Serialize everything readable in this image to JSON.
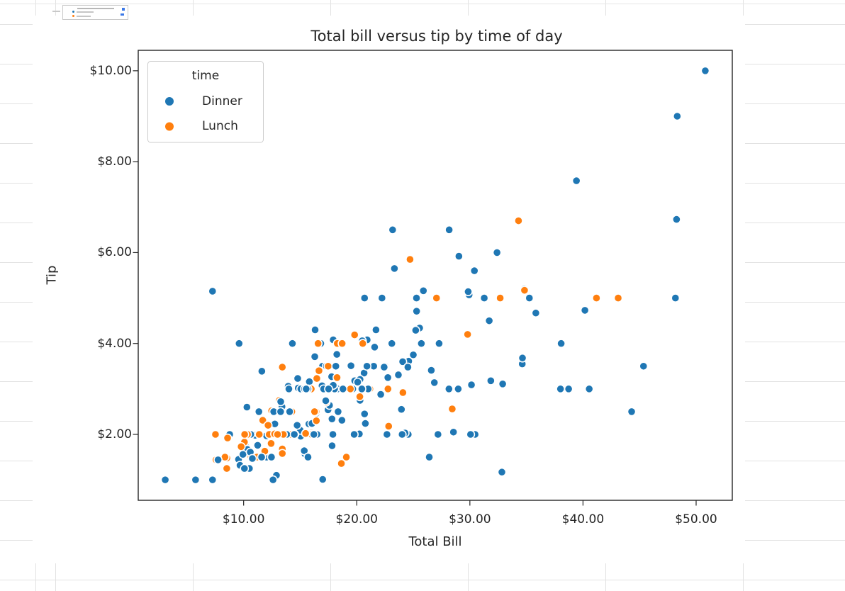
{
  "style": {
    "text_color": "#262626",
    "spine_color": "#262626",
    "marker_edge_color": "#ffffff",
    "figure_background": "#ffffff",
    "spreadsheet_gridline_color": "#e2e2e2",
    "legend_border_color": "#cccccc"
  },
  "thumbnail": {
    "dot_colors": [
      "#1f77b4",
      "#ff7f0e"
    ],
    "glyph_color": "#3b78e7"
  },
  "chart_data": {
    "type": "scatter",
    "title": "Total bill versus tip by time of day",
    "xlabel": "Total Bill",
    "ylabel": "Tip",
    "xlim": [
      0.683,
      53.197
    ],
    "ylim": [
      0.55,
      10.45
    ],
    "grid": false,
    "x_ticks": [
      {
        "value": 10,
        "label": "$10.00"
      },
      {
        "value": 20,
        "label": "$20.00"
      },
      {
        "value": 30,
        "label": "$30.00"
      },
      {
        "value": 40,
        "label": "$40.00"
      },
      {
        "value": 50,
        "label": "$50.00"
      }
    ],
    "y_ticks": [
      {
        "value": 2,
        "label": "$2.00"
      },
      {
        "value": 4,
        "label": "$4.00"
      },
      {
        "value": 6,
        "label": "$6.00"
      },
      {
        "value": 8,
        "label": "$8.00"
      },
      {
        "value": 10,
        "label": "$10.00"
      }
    ],
    "legend": {
      "title": "time",
      "position": "upper left",
      "entries": [
        {
          "label": "Dinner",
          "color": "#1f77b4"
        },
        {
          "label": "Lunch",
          "color": "#ff7f0e"
        }
      ]
    },
    "point_format": [
      "total_bill",
      "tip",
      "time_code"
    ],
    "time_codes": {
      "D": "Dinner",
      "L": "Lunch"
    },
    "points": [
      [
        16.99,
        1.01,
        "D"
      ],
      [
        10.34,
        1.66,
        "D"
      ],
      [
        21.01,
        3.5,
        "D"
      ],
      [
        23.68,
        3.31,
        "D"
      ],
      [
        24.59,
        3.61,
        "D"
      ],
      [
        25.29,
        4.71,
        "D"
      ],
      [
        8.77,
        2.0,
        "D"
      ],
      [
        26.88,
        3.12,
        "D"
      ],
      [
        15.04,
        1.96,
        "D"
      ],
      [
        14.78,
        3.23,
        "D"
      ],
      [
        10.27,
        1.71,
        "D"
      ],
      [
        35.26,
        5.0,
        "D"
      ],
      [
        15.42,
        1.57,
        "D"
      ],
      [
        18.43,
        3.0,
        "D"
      ],
      [
        14.83,
        3.02,
        "D"
      ],
      [
        21.58,
        3.92,
        "D"
      ],
      [
        10.33,
        1.67,
        "D"
      ],
      [
        16.29,
        3.71,
        "D"
      ],
      [
        16.97,
        3.5,
        "D"
      ],
      [
        20.65,
        3.35,
        "D"
      ],
      [
        17.92,
        4.08,
        "D"
      ],
      [
        20.29,
        2.75,
        "D"
      ],
      [
        15.77,
        2.23,
        "D"
      ],
      [
        39.42,
        7.58,
        "D"
      ],
      [
        19.82,
        3.18,
        "D"
      ],
      [
        17.81,
        2.34,
        "D"
      ],
      [
        13.37,
        2.0,
        "D"
      ],
      [
        12.69,
        2.0,
        "D"
      ],
      [
        21.7,
        4.3,
        "D"
      ],
      [
        19.65,
        3.0,
        "D"
      ],
      [
        9.55,
        1.45,
        "D"
      ],
      [
        18.35,
        2.5,
        "D"
      ],
      [
        15.06,
        3.0,
        "D"
      ],
      [
        20.69,
        2.45,
        "D"
      ],
      [
        17.78,
        3.27,
        "D"
      ],
      [
        24.06,
        3.6,
        "D"
      ],
      [
        16.31,
        2.0,
        "D"
      ],
      [
        16.93,
        3.07,
        "D"
      ],
      [
        18.69,
        2.31,
        "D"
      ],
      [
        31.27,
        5.0,
        "D"
      ],
      [
        16.04,
        2.24,
        "D"
      ],
      [
        17.46,
        2.54,
        "D"
      ],
      [
        13.94,
        3.06,
        "D"
      ],
      [
        9.68,
        1.32,
        "D"
      ],
      [
        30.4,
        5.6,
        "D"
      ],
      [
        18.29,
        3.0,
        "D"
      ],
      [
        22.23,
        5.0,
        "D"
      ],
      [
        32.4,
        6.0,
        "D"
      ],
      [
        28.55,
        2.05,
        "D"
      ],
      [
        18.04,
        3.0,
        "D"
      ],
      [
        12.54,
        2.5,
        "D"
      ],
      [
        10.29,
        2.6,
        "D"
      ],
      [
        34.81,
        5.2,
        "D"
      ],
      [
        9.94,
        1.56,
        "D"
      ],
      [
        25.56,
        4.34,
        "D"
      ],
      [
        19.49,
        3.51,
        "D"
      ],
      [
        38.01,
        3.0,
        "D"
      ],
      [
        26.41,
        1.5,
        "D"
      ],
      [
        11.24,
        1.76,
        "D"
      ],
      [
        48.27,
        6.73,
        "D"
      ],
      [
        20.29,
        3.21,
        "D"
      ],
      [
        13.81,
        2.0,
        "D"
      ],
      [
        11.02,
        1.98,
        "D"
      ],
      [
        18.29,
        3.76,
        "D"
      ],
      [
        17.59,
        2.64,
        "D"
      ],
      [
        20.08,
        3.15,
        "D"
      ],
      [
        16.45,
        2.47,
        "D"
      ],
      [
        3.07,
        1.0,
        "D"
      ],
      [
        20.23,
        2.01,
        "D"
      ],
      [
        15.01,
        2.09,
        "D"
      ],
      [
        12.02,
        1.97,
        "D"
      ],
      [
        17.07,
        3.0,
        "D"
      ],
      [
        26.86,
        3.14,
        "D"
      ],
      [
        25.28,
        5.0,
        "D"
      ],
      [
        14.73,
        2.2,
        "D"
      ],
      [
        10.51,
        1.25,
        "D"
      ],
      [
        17.92,
        3.08,
        "D"
      ],
      [
        27.2,
        4.0,
        "L"
      ],
      [
        22.76,
        3.0,
        "L"
      ],
      [
        17.29,
        2.71,
        "L"
      ],
      [
        19.44,
        3.0,
        "L"
      ],
      [
        16.66,
        3.4,
        "L"
      ],
      [
        10.07,
        1.83,
        "L"
      ],
      [
        32.68,
        5.0,
        "L"
      ],
      [
        15.98,
        2.03,
        "L"
      ],
      [
        34.83,
        5.17,
        "L"
      ],
      [
        13.03,
        2.0,
        "L"
      ],
      [
        18.28,
        4.0,
        "L"
      ],
      [
        24.71,
        5.85,
        "L"
      ],
      [
        21.16,
        3.0,
        "L"
      ],
      [
        28.97,
        3.0,
        "D"
      ],
      [
        22.49,
        3.5,
        "D"
      ],
      [
        5.75,
        1.0,
        "D"
      ],
      [
        16.32,
        4.3,
        "D"
      ],
      [
        22.75,
        3.25,
        "D"
      ],
      [
        40.17,
        4.73,
        "D"
      ],
      [
        27.28,
        4.0,
        "D"
      ],
      [
        12.03,
        1.5,
        "D"
      ],
      [
        21.01,
        3.0,
        "D"
      ],
      [
        12.46,
        1.5,
        "D"
      ],
      [
        11.35,
        2.5,
        "D"
      ],
      [
        15.38,
        3.0,
        "D"
      ],
      [
        44.3,
        2.5,
        "D"
      ],
      [
        22.42,
        3.48,
        "D"
      ],
      [
        20.92,
        4.08,
        "D"
      ],
      [
        15.36,
        1.64,
        "D"
      ],
      [
        20.49,
        4.06,
        "D"
      ],
      [
        25.21,
        4.29,
        "D"
      ],
      [
        18.24,
        3.76,
        "D"
      ],
      [
        14.31,
        4.0,
        "D"
      ],
      [
        14.0,
        3.0,
        "D"
      ],
      [
        7.25,
        1.0,
        "D"
      ],
      [
        38.07,
        4.0,
        "D"
      ],
      [
        23.95,
        2.55,
        "D"
      ],
      [
        25.71,
        4.0,
        "D"
      ],
      [
        17.31,
        3.5,
        "D"
      ],
      [
        29.93,
        5.07,
        "D"
      ],
      [
        10.65,
        1.5,
        "L"
      ],
      [
        12.43,
        1.8,
        "L"
      ],
      [
        24.08,
        2.92,
        "L"
      ],
      [
        11.69,
        2.31,
        "L"
      ],
      [
        13.42,
        1.68,
        "L"
      ],
      [
        14.26,
        2.5,
        "L"
      ],
      [
        15.95,
        2.0,
        "L"
      ],
      [
        12.48,
        2.52,
        "L"
      ],
      [
        29.8,
        4.2,
        "L"
      ],
      [
        8.52,
        1.48,
        "L"
      ],
      [
        14.52,
        2.0,
        "L"
      ],
      [
        11.38,
        2.0,
        "L"
      ],
      [
        22.82,
        2.18,
        "L"
      ],
      [
        19.08,
        1.5,
        "L"
      ],
      [
        20.27,
        2.83,
        "L"
      ],
      [
        11.17,
        1.5,
        "L"
      ],
      [
        12.26,
        2.0,
        "L"
      ],
      [
        18.26,
        3.25,
        "L"
      ],
      [
        8.51,
        1.25,
        "L"
      ],
      [
        10.33,
        2.0,
        "L"
      ],
      [
        14.15,
        2.0,
        "L"
      ],
      [
        16.0,
        2.0,
        "L"
      ],
      [
        13.16,
        2.75,
        "L"
      ],
      [
        17.47,
        3.5,
        "L"
      ],
      [
        34.3,
        6.7,
        "L"
      ],
      [
        41.19,
        5.0,
        "L"
      ],
      [
        27.05,
        5.0,
        "L"
      ],
      [
        16.43,
        2.3,
        "L"
      ],
      [
        8.35,
        1.5,
        "L"
      ],
      [
        18.64,
        1.36,
        "L"
      ],
      [
        11.87,
        1.63,
        "L"
      ],
      [
        9.78,
        1.73,
        "L"
      ],
      [
        7.51,
        2.0,
        "L"
      ],
      [
        14.07,
        2.5,
        "D"
      ],
      [
        13.13,
        2.0,
        "D"
      ],
      [
        17.26,
        2.74,
        "D"
      ],
      [
        24.55,
        2.0,
        "D"
      ],
      [
        19.77,
        2.0,
        "D"
      ],
      [
        29.85,
        5.14,
        "D"
      ],
      [
        48.17,
        5.0,
        "D"
      ],
      [
        25.0,
        3.75,
        "D"
      ],
      [
        13.39,
        2.61,
        "D"
      ],
      [
        16.49,
        2.0,
        "D"
      ],
      [
        21.5,
        3.5,
        "D"
      ],
      [
        12.66,
        2.5,
        "D"
      ],
      [
        16.21,
        2.0,
        "D"
      ],
      [
        13.81,
        2.0,
        "D"
      ],
      [
        17.51,
        3.0,
        "D"
      ],
      [
        24.52,
        3.48,
        "D"
      ],
      [
        20.76,
        2.24,
        "D"
      ],
      [
        31.71,
        4.5,
        "D"
      ],
      [
        10.59,
        1.61,
        "D"
      ],
      [
        10.63,
        2.0,
        "D"
      ],
      [
        50.81,
        10.0,
        "D"
      ],
      [
        15.81,
        3.16,
        "D"
      ],
      [
        7.25,
        5.15,
        "D"
      ],
      [
        31.85,
        3.18,
        "D"
      ],
      [
        16.82,
        4.0,
        "D"
      ],
      [
        32.9,
        3.11,
        "D"
      ],
      [
        17.89,
        2.0,
        "D"
      ],
      [
        14.48,
        2.0,
        "D"
      ],
      [
        9.6,
        4.0,
        "D"
      ],
      [
        34.63,
        3.55,
        "D"
      ],
      [
        34.65,
        3.68,
        "D"
      ],
      [
        23.33,
        5.65,
        "D"
      ],
      [
        45.35,
        3.5,
        "D"
      ],
      [
        23.17,
        6.5,
        "D"
      ],
      [
        40.55,
        3.0,
        "D"
      ],
      [
        20.69,
        5.0,
        "D"
      ],
      [
        20.9,
        3.5,
        "D"
      ],
      [
        30.46,
        2.0,
        "D"
      ],
      [
        18.15,
        3.5,
        "D"
      ],
      [
        23.1,
        4.0,
        "D"
      ],
      [
        15.69,
        1.5,
        "D"
      ],
      [
        19.81,
        4.19,
        "L"
      ],
      [
        28.44,
        2.56,
        "L"
      ],
      [
        15.48,
        2.02,
        "L"
      ],
      [
        16.58,
        4.0,
        "L"
      ],
      [
        7.56,
        1.44,
        "L"
      ],
      [
        10.34,
        2.0,
        "L"
      ],
      [
        43.11,
        5.0,
        "L"
      ],
      [
        13.0,
        2.0,
        "L"
      ],
      [
        13.51,
        2.0,
        "L"
      ],
      [
        18.71,
        4.0,
        "L"
      ],
      [
        12.74,
        2.01,
        "L"
      ],
      [
        13.0,
        2.0,
        "L"
      ],
      [
        16.4,
        2.5,
        "L"
      ],
      [
        20.53,
        4.0,
        "L"
      ],
      [
        16.47,
        3.23,
        "L"
      ],
      [
        26.59,
        3.41,
        "D"
      ],
      [
        38.73,
        3.0,
        "D"
      ],
      [
        24.27,
        2.03,
        "D"
      ],
      [
        12.76,
        2.23,
        "D"
      ],
      [
        30.06,
        2.0,
        "D"
      ],
      [
        25.89,
        5.16,
        "D"
      ],
      [
        48.33,
        9.0,
        "D"
      ],
      [
        13.27,
        2.5,
        "D"
      ],
      [
        28.17,
        6.5,
        "D"
      ],
      [
        12.9,
        1.1,
        "D"
      ],
      [
        28.15,
        3.0,
        "D"
      ],
      [
        11.59,
        1.5,
        "D"
      ],
      [
        7.74,
        1.44,
        "D"
      ],
      [
        30.14,
        3.09,
        "D"
      ],
      [
        12.16,
        2.2,
        "L"
      ],
      [
        13.42,
        3.48,
        "L"
      ],
      [
        8.58,
        1.92,
        "L"
      ],
      [
        15.98,
        3.0,
        "L"
      ],
      [
        13.42,
        1.58,
        "L"
      ],
      [
        16.27,
        2.5,
        "L"
      ],
      [
        10.09,
        2.0,
        "L"
      ],
      [
        20.45,
        3.0,
        "D"
      ],
      [
        13.28,
        2.72,
        "D"
      ],
      [
        22.12,
        2.88,
        "D"
      ],
      [
        24.01,
        2.0,
        "D"
      ],
      [
        15.69,
        3.0,
        "D"
      ],
      [
        11.61,
        3.39,
        "D"
      ],
      [
        10.77,
        1.47,
        "D"
      ],
      [
        15.53,
        3.0,
        "D"
      ],
      [
        10.07,
        1.25,
        "D"
      ],
      [
        12.6,
        1.0,
        "D"
      ],
      [
        32.83,
        1.17,
        "D"
      ],
      [
        35.83,
        4.67,
        "D"
      ],
      [
        29.03,
        5.92,
        "D"
      ],
      [
        27.18,
        2.0,
        "D"
      ],
      [
        22.67,
        2.0,
        "D"
      ],
      [
        17.82,
        1.75,
        "D"
      ],
      [
        18.78,
        3.0,
        "D"
      ]
    ]
  }
}
